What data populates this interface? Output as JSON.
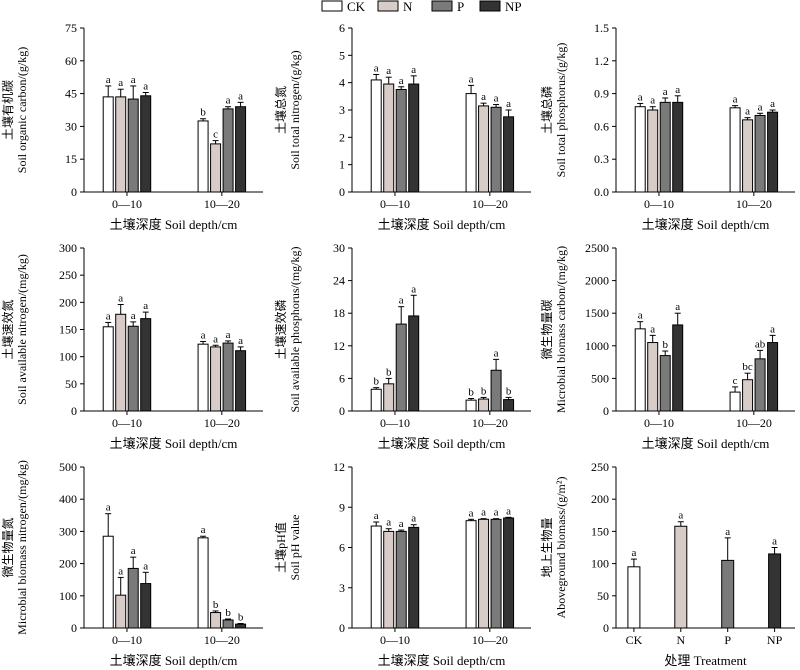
{
  "legend": {
    "items": [
      {
        "label": "CK",
        "color": "#ffffff"
      },
      {
        "label": "N",
        "color": "#d8ccc8"
      },
      {
        "label": "P",
        "color": "#7a7a7a"
      },
      {
        "label": "NP",
        "color": "#333333"
      }
    ]
  },
  "chart_data": [
    {
      "type": "bar",
      "title": "",
      "ylabel_cn": "土壤有机碳",
      "ylabel_en": "Soil organic carbon/(g/kg)",
      "xlabel": "土壤深度 Soil depth/cm",
      "categories": [
        "0—10",
        "10—20"
      ],
      "ylim": [
        0,
        75
      ],
      "yticks": [
        0,
        15,
        30,
        45,
        60,
        75
      ],
      "series": [
        {
          "name": "CK",
          "values": [
            43.5,
            32.5
          ],
          "errors": [
            5.0,
            1.0
          ],
          "letters": [
            "a",
            "b"
          ]
        },
        {
          "name": "N",
          "values": [
            43.5,
            22.0
          ],
          "errors": [
            3.5,
            1.5
          ],
          "letters": [
            "a",
            "c"
          ]
        },
        {
          "name": "P",
          "values": [
            42.5,
            38.0
          ],
          "errors": [
            6.0,
            1.0
          ],
          "letters": [
            "a",
            "a"
          ]
        },
        {
          "name": "NP",
          "values": [
            44.0,
            39.0
          ],
          "errors": [
            1.5,
            2.0
          ],
          "letters": [
            "a",
            "a"
          ]
        }
      ]
    },
    {
      "type": "bar",
      "title": "",
      "ylabel_cn": "土壤总氮",
      "ylabel_en": "Soil total nitrogen/(g/kg)",
      "xlabel": "土壤深度 Soil depth/cm",
      "categories": [
        "0—10",
        "10—20"
      ],
      "ylim": [
        0,
        6
      ],
      "yticks": [
        0,
        1,
        2,
        3,
        4,
        5,
        6
      ],
      "series": [
        {
          "name": "CK",
          "values": [
            4.1,
            3.6
          ],
          "errors": [
            0.2,
            0.3
          ],
          "letters": [
            "a",
            "a"
          ]
        },
        {
          "name": "N",
          "values": [
            3.95,
            3.15
          ],
          "errors": [
            0.25,
            0.1
          ],
          "letters": [
            "a",
            "a"
          ]
        },
        {
          "name": "P",
          "values": [
            3.75,
            3.1
          ],
          "errors": [
            0.1,
            0.1
          ],
          "letters": [
            "a",
            "a"
          ]
        },
        {
          "name": "NP",
          "values": [
            3.95,
            2.75
          ],
          "errors": [
            0.3,
            0.25
          ],
          "letters": [
            "a",
            "a"
          ]
        }
      ]
    },
    {
      "type": "bar",
      "title": "",
      "ylabel_cn": "土壤总磷",
      "ylabel_en": "Soil total phosphorus/(g/kg)",
      "xlabel": "土壤深度 Soil depth/cm",
      "categories": [
        "0—10",
        "10—20"
      ],
      "ylim": [
        0,
        1.5
      ],
      "yticks": [
        0,
        0.3,
        0.6,
        0.9,
        1.2,
        1.5
      ],
      "series": [
        {
          "name": "CK",
          "values": [
            0.78,
            0.77
          ],
          "errors": [
            0.03,
            0.02
          ],
          "letters": [
            "a",
            "a"
          ]
        },
        {
          "name": "N",
          "values": [
            0.75,
            0.66
          ],
          "errors": [
            0.03,
            0.02
          ],
          "letters": [
            "a",
            "a"
          ]
        },
        {
          "name": "P",
          "values": [
            0.82,
            0.7
          ],
          "errors": [
            0.04,
            0.02
          ],
          "letters": [
            "a",
            "a"
          ]
        },
        {
          "name": "NP",
          "values": [
            0.82,
            0.73
          ],
          "errors": [
            0.06,
            0.02
          ],
          "letters": [
            "a",
            "a"
          ]
        }
      ]
    },
    {
      "type": "bar",
      "title": "",
      "ylabel_cn": "土壤速效氮",
      "ylabel_en": "Soil available nitrogen/(mg/kg)",
      "xlabel": "土壤深度 Soil depth/cm",
      "categories": [
        "0—10",
        "10—20"
      ],
      "ylim": [
        0,
        300
      ],
      "yticks": [
        0,
        50,
        100,
        150,
        200,
        250,
        300
      ],
      "series": [
        {
          "name": "CK",
          "values": [
            155,
            123
          ],
          "errors": [
            8,
            5
          ],
          "letters": [
            "a",
            "a"
          ]
        },
        {
          "name": "N",
          "values": [
            178,
            118
          ],
          "errors": [
            18,
            3
          ],
          "letters": [
            "a",
            "a"
          ]
        },
        {
          "name": "P",
          "values": [
            156,
            125
          ],
          "errors": [
            8,
            4
          ],
          "letters": [
            "a",
            "a"
          ]
        },
        {
          "name": "NP",
          "values": [
            170,
            111
          ],
          "errors": [
            12,
            7
          ],
          "letters": [
            "a",
            "a"
          ]
        }
      ]
    },
    {
      "type": "bar",
      "title": "",
      "ylabel_cn": "土壤速效磷",
      "ylabel_en": "Soil available phosphorus/(mg/kg)",
      "xlabel": "土壤深度 Soil depth/cm",
      "categories": [
        "0—10",
        "10—20"
      ],
      "ylim": [
        0,
        30
      ],
      "yticks": [
        0,
        6,
        12,
        18,
        24,
        30
      ],
      "series": [
        {
          "name": "CK",
          "values": [
            4.0,
            2.0
          ],
          "errors": [
            0.3,
            0.3
          ],
          "letters": [
            "b",
            "b"
          ]
        },
        {
          "name": "N",
          "values": [
            5.0,
            2.2
          ],
          "errors": [
            1.0,
            0.3
          ],
          "letters": [
            "b",
            "b"
          ]
        },
        {
          "name": "P",
          "values": [
            16.0,
            7.5
          ],
          "errors": [
            3.2,
            2.0
          ],
          "letters": [
            "a",
            "a"
          ]
        },
        {
          "name": "NP",
          "values": [
            17.5,
            2.1
          ],
          "errors": [
            3.8,
            0.4
          ],
          "letters": [
            "a",
            "b"
          ]
        }
      ]
    },
    {
      "type": "bar",
      "title": "",
      "ylabel_cn": "微生物量碳",
      "ylabel_en": "Microbial biomass carbon/(mg/kg)",
      "xlabel": "土壤深度 Soil depth/cm",
      "categories": [
        "0—10",
        "10—20"
      ],
      "ylim": [
        0,
        2500
      ],
      "yticks": [
        0,
        500,
        1000,
        1500,
        2000,
        2500
      ],
      "series": [
        {
          "name": "CK",
          "values": [
            1260,
            290
          ],
          "errors": [
            110,
            80
          ],
          "letters": [
            "a",
            "c"
          ]
        },
        {
          "name": "N",
          "values": [
            1050,
            480
          ],
          "errors": [
            110,
            100
          ],
          "letters": [
            "a",
            "bc"
          ]
        },
        {
          "name": "P",
          "values": [
            850,
            800
          ],
          "errors": [
            70,
            130
          ],
          "letters": [
            "b",
            "ab"
          ]
        },
        {
          "name": "NP",
          "values": [
            1320,
            1050
          ],
          "errors": [
            180,
            110
          ],
          "letters": [
            "a",
            "a"
          ]
        }
      ]
    },
    {
      "type": "bar",
      "title": "",
      "ylabel_cn": "微生物量氮",
      "ylabel_en": "Microbial biomass nitrogen/(mg/kg)",
      "xlabel": "土壤深度 Soil depth/cm",
      "categories": [
        "0—10",
        "10—20"
      ],
      "ylim": [
        0,
        500
      ],
      "yticks": [
        0,
        100,
        200,
        300,
        400,
        500
      ],
      "series": [
        {
          "name": "CK",
          "values": [
            285,
            280
          ],
          "errors": [
            70,
            5
          ],
          "letters": [
            "a",
            "a"
          ]
        },
        {
          "name": "N",
          "values": [
            102,
            48
          ],
          "errors": [
            55,
            5
          ],
          "letters": [
            "a",
            "b"
          ]
        },
        {
          "name": "P",
          "values": [
            185,
            25
          ],
          "errors": [
            35,
            3
          ],
          "letters": [
            "a",
            "b"
          ]
        },
        {
          "name": "NP",
          "values": [
            138,
            12
          ],
          "errors": [
            35,
            2
          ],
          "letters": [
            "a",
            "b"
          ]
        }
      ]
    },
    {
      "type": "bar",
      "title": "",
      "ylabel_cn": "土壤pH值",
      "ylabel_en": "Soil pH value",
      "xlabel": "土壤深度 Soil depth/cm",
      "categories": [
        "0—10",
        "10—20"
      ],
      "ylim": [
        0,
        12
      ],
      "yticks": [
        0,
        3,
        6,
        9,
        12
      ],
      "series": [
        {
          "name": "CK",
          "values": [
            7.6,
            8.0
          ],
          "errors": [
            0.3,
            0.1
          ],
          "letters": [
            "a",
            "a"
          ]
        },
        {
          "name": "N",
          "values": [
            7.2,
            8.1
          ],
          "errors": [
            0.2,
            0.05
          ],
          "letters": [
            "a",
            "a"
          ]
        },
        {
          "name": "P",
          "values": [
            7.2,
            8.1
          ],
          "errors": [
            0.1,
            0.05
          ],
          "letters": [
            "a",
            "a"
          ]
        },
        {
          "name": "NP",
          "values": [
            7.5,
            8.2
          ],
          "errors": [
            0.2,
            0.05
          ],
          "letters": [
            "a",
            "a"
          ]
        }
      ]
    },
    {
      "type": "bar",
      "title": "",
      "ylabel_cn": "地上生物量",
      "ylabel_en": "Aboveground biomass/(g/m²)",
      "xlabel": "处理 Treatment",
      "categories": [
        "CK",
        "N",
        "P",
        "NP"
      ],
      "ylim": [
        0,
        250
      ],
      "yticks": [
        0,
        50,
        100,
        150,
        200,
        250
      ],
      "values": [
        95,
        158,
        105,
        115
      ],
      "errors": [
        12,
        7,
        35,
        10
      ],
      "letters": [
        "a",
        "a",
        "a",
        "a"
      ],
      "colors": [
        "#ffffff",
        "#d8ccc8",
        "#7a7a7a",
        "#333333"
      ]
    }
  ]
}
